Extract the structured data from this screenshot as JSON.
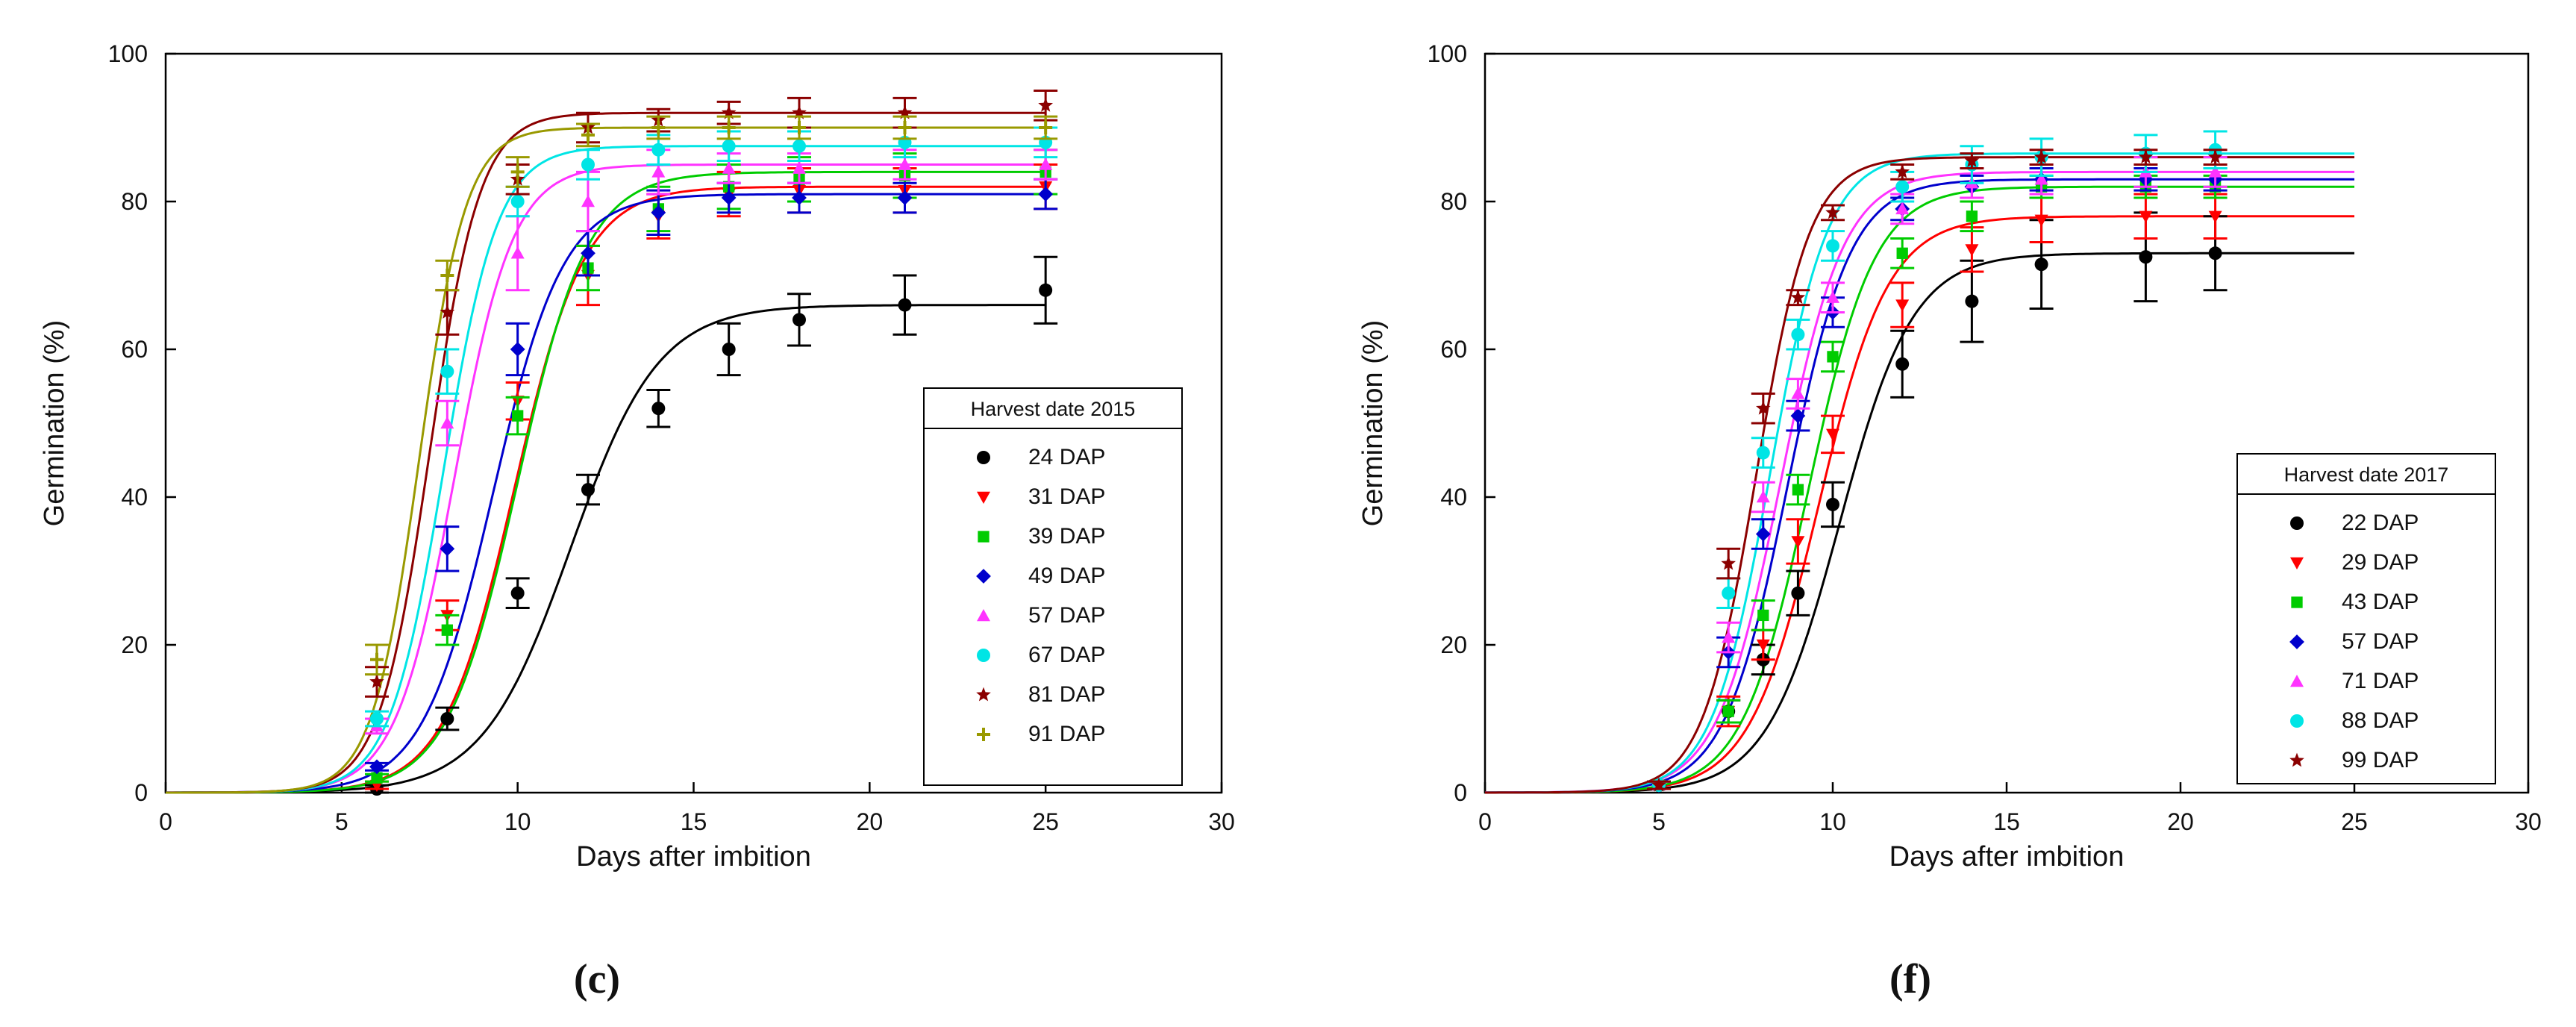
{
  "chart_data": [
    {
      "type": "scatter",
      "panel": "(c)",
      "xlabel": "Days after imbition",
      "ylabel": "Germination (%)",
      "xlim": [
        0,
        30
      ],
      "ylim": [
        0,
        100
      ],
      "xticks": [
        0,
        5,
        10,
        15,
        20,
        25,
        30
      ],
      "yticks": [
        0,
        20,
        40,
        60,
        80,
        100
      ],
      "legend_title": "Harvest date 2015",
      "legend_position": "right",
      "grid": false,
      "series": [
        {
          "name": "24 DAP",
          "color": "#000000",
          "marker": "circle",
          "x": [
            6,
            8,
            10,
            12,
            14,
            16,
            18,
            21,
            25
          ],
          "y": [
            0.5,
            10,
            27,
            41,
            52,
            60,
            64,
            66,
            68
          ],
          "err": [
            0.5,
            1.5,
            2,
            2,
            2.5,
            3.5,
            3.5,
            4,
            4.5
          ],
          "fit": {
            "max": 66,
            "x50": 11.5,
            "k": 0.8
          }
        },
        {
          "name": "31 DAP",
          "color": "#ff0000",
          "marker": "triangle-down",
          "x": [
            6,
            8,
            10,
            12,
            14,
            16,
            18,
            21,
            25
          ],
          "y": [
            1,
            24,
            53,
            70,
            78,
            81,
            81.5,
            81.5,
            82
          ],
          "err": [
            0.5,
            2,
            2.5,
            4,
            3,
            3,
            3,
            3,
            3
          ],
          "fit": {
            "max": 82,
            "x50": 9.9,
            "k": 1.0
          }
        },
        {
          "name": "39 DAP",
          "color": "#00cc00",
          "marker": "square",
          "x": [
            6,
            8,
            10,
            12,
            14,
            16,
            18,
            21,
            25
          ],
          "y": [
            2,
            22,
            51,
            71,
            79,
            82,
            83,
            83.5,
            84
          ],
          "err": [
            0.5,
            2,
            2.5,
            3,
            3,
            3,
            3,
            3,
            3
          ],
          "fit": {
            "max": 84,
            "x50": 10.0,
            "k": 1.0
          }
        },
        {
          "name": "49 DAP",
          "color": "#0000cc",
          "marker": "diamond",
          "x": [
            6,
            8,
            10,
            12,
            14,
            16,
            18,
            21,
            25
          ],
          "y": [
            3.5,
            33,
            60,
            73,
            78.5,
            80.5,
            80.5,
            80.5,
            81
          ],
          "err": [
            0.5,
            3,
            3.5,
            3,
            3,
            2,
            2,
            2,
            2
          ],
          "fit": {
            "max": 81,
            "x50": 9.3,
            "k": 1.0
          }
        },
        {
          "name": "57 DAP",
          "color": "#ff33ff",
          "marker": "triangle-up",
          "x": [
            6,
            8,
            10,
            12,
            14,
            16,
            18,
            21,
            25
          ],
          "y": [
            9,
            50,
            73,
            80,
            84,
            84.5,
            84.5,
            85,
            85
          ],
          "err": [
            1,
            3,
            5,
            4,
            3,
            2,
            2,
            2,
            2
          ],
          "fit": {
            "max": 85,
            "x50": 8.2,
            "k": 1.2
          }
        },
        {
          "name": "67 DAP",
          "color": "#00e5e5",
          "marker": "circle",
          "x": [
            6,
            8,
            10,
            12,
            14,
            16,
            18,
            21,
            25
          ],
          "y": [
            10,
            57,
            80,
            85,
            87,
            87.5,
            87.5,
            88,
            88
          ],
          "err": [
            1,
            3,
            2,
            2,
            2,
            2,
            2,
            2,
            2
          ],
          "fit": {
            "max": 87.5,
            "x50": 7.9,
            "k": 1.3
          }
        },
        {
          "name": "81 DAP",
          "color": "#8b0000",
          "marker": "star",
          "x": [
            6,
            8,
            10,
            12,
            14,
            16,
            18,
            21,
            25
          ],
          "y": [
            15,
            65,
            83,
            90,
            91,
            92,
            92,
            92,
            93
          ],
          "err": [
            2,
            3,
            2,
            2,
            1.5,
            1.5,
            2,
            2,
            2
          ],
          "fit": {
            "max": 92,
            "x50": 7.5,
            "k": 1.4
          }
        },
        {
          "name": "91 DAP",
          "color": "#999900",
          "marker": "plus",
          "x": [
            6,
            8,
            10,
            12,
            14,
            16,
            18,
            21,
            25
          ],
          "y": [
            18,
            70,
            84,
            89,
            90,
            90,
            90,
            90,
            90
          ],
          "err": [
            2,
            2,
            2,
            1.5,
            1.5,
            1.5,
            1.5,
            1.5,
            1.5
          ],
          "fit": {
            "max": 90,
            "x50": 7.2,
            "k": 1.5
          }
        }
      ]
    },
    {
      "type": "scatter",
      "panel": "(f)",
      "xlabel": "Days after imbition",
      "ylabel": "Germination (%)",
      "xlim": [
        0,
        30
      ],
      "ylim": [
        0,
        100
      ],
      "xticks": [
        0,
        5,
        10,
        15,
        20,
        25,
        30
      ],
      "yticks": [
        0,
        20,
        40,
        60,
        80,
        100
      ],
      "legend_title": "Harvest date 2017",
      "legend_position": "right",
      "grid": false,
      "series": [
        {
          "name": "22 DAP",
          "color": "#000000",
          "marker": "circle",
          "x": [
            5,
            7,
            8,
            9,
            10,
            12,
            14,
            16,
            19,
            21
          ],
          "y": [
            1,
            11,
            18,
            27,
            39,
            58,
            66.5,
            71.5,
            72.5,
            73
          ],
          "err": [
            0.5,
            1.5,
            2,
            3,
            3,
            4.5,
            5.5,
            6,
            6,
            5
          ],
          "fit": {
            "max": 73,
            "x50": 10.2,
            "k": 0.95
          }
        },
        {
          "name": "29 DAP",
          "color": "#ff0000",
          "marker": "triangle-down",
          "x": [
            5,
            7,
            8,
            9,
            10,
            12,
            14,
            16,
            19,
            21
          ],
          "y": [
            1,
            11,
            20,
            34,
            48.5,
            66,
            73.5,
            77.5,
            78,
            78
          ],
          "err": [
            0.5,
            2,
            2,
            3,
            2.5,
            3,
            3,
            3,
            3,
            3
          ],
          "fit": {
            "max": 78,
            "x50": 9.6,
            "k": 1.0
          }
        },
        {
          "name": "43 DAP",
          "color": "#00cc00",
          "marker": "square",
          "x": [
            5,
            7,
            8,
            9,
            10,
            12,
            14,
            16,
            19,
            21
          ],
          "y": [
            1,
            11,
            24,
            41,
            59,
            73,
            78,
            82,
            82,
            82
          ],
          "err": [
            0.5,
            1.5,
            2,
            2,
            2,
            2,
            2,
            1.5,
            1.5,
            1.5
          ],
          "fit": {
            "max": 82,
            "x50": 9.3,
            "k": 1.05
          }
        },
        {
          "name": "57 DAP",
          "color": "#0000cc",
          "marker": "diamond",
          "x": [
            5,
            7,
            8,
            9,
            10,
            12,
            14,
            16,
            19,
            21
          ],
          "y": [
            1,
            19,
            35,
            51,
            65,
            79,
            82,
            83,
            83,
            83
          ],
          "err": [
            0.5,
            2,
            2,
            2,
            2,
            1.5,
            1.5,
            1.5,
            1.5,
            1.5
          ],
          "fit": {
            "max": 83,
            "x50": 8.7,
            "k": 1.1
          }
        },
        {
          "name": "71 DAP",
          "color": "#ff33ff",
          "marker": "triangle-up",
          "x": [
            5,
            7,
            8,
            9,
            10,
            12,
            14,
            16,
            19,
            21
          ],
          "y": [
            1,
            21,
            40,
            54,
            67,
            79,
            82.5,
            83,
            84,
            84
          ],
          "err": [
            0.5,
            2,
            2,
            2,
            2,
            2,
            2,
            2,
            2,
            2
          ],
          "fit": {
            "max": 84,
            "x50": 8.5,
            "k": 1.1
          }
        },
        {
          "name": "88 DAP",
          "color": "#00e5e5",
          "marker": "circle",
          "x": [
            5,
            7,
            8,
            9,
            10,
            12,
            14,
            16,
            19,
            21
          ],
          "y": [
            1,
            27,
            46,
            62,
            74,
            82,
            85,
            86,
            86.5,
            87
          ],
          "err": [
            0.5,
            2,
            2,
            2,
            2,
            2,
            2.5,
            2.5,
            2.5,
            2.5
          ],
          "fit": {
            "max": 86.5,
            "x50": 8.2,
            "k": 1.2
          }
        },
        {
          "name": "99 DAP",
          "color": "#8b0000",
          "marker": "star",
          "x": [
            5,
            7,
            8,
            9,
            10,
            12,
            14,
            16,
            19,
            21
          ],
          "y": [
            1,
            31,
            52,
            67,
            78.5,
            84,
            85.5,
            86,
            86,
            86
          ],
          "err": [
            0.5,
            2,
            2,
            1,
            1,
            1,
            1,
            1,
            1,
            1
          ],
          "fit": {
            "max": 86,
            "x50": 7.8,
            "k": 1.3
          }
        }
      ]
    }
  ]
}
